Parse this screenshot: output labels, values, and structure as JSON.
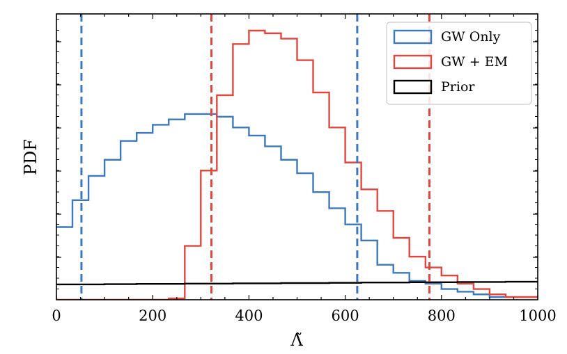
{
  "chart_data": {
    "type": "histogram",
    "xlabel": "Λ̃",
    "ylabel": "PDF",
    "xlim": [
      0,
      1000
    ],
    "ylim": [
      0,
      1.0
    ],
    "xticks": [
      0,
      200,
      400,
      600,
      800,
      1000
    ],
    "xtick_labels": [
      "0",
      "200",
      "400",
      "600",
      "800",
      "1000"
    ],
    "yticks_minor_only": true,
    "bin_edges": [
      0,
      33.3,
      66.7,
      100,
      133.3,
      166.7,
      200,
      233.3,
      266.7,
      300,
      333.3,
      366.7,
      400,
      433.3,
      466.7,
      500,
      533.3,
      566.7,
      600,
      633.3,
      666.7,
      700,
      733.3,
      766.7,
      800,
      833.3,
      866.7,
      900,
      933.3,
      966.7,
      1000
    ],
    "series": [
      {
        "name": "GW Only",
        "color": "#3a78c0",
        "values": [
          0.27,
          0.37,
          0.46,
          0.52,
          0.59,
          0.62,
          0.65,
          0.67,
          0.69,
          0.69,
          0.68,
          0.64,
          0.61,
          0.57,
          0.52,
          0.47,
          0.4,
          0.34,
          0.28,
          0.22,
          0.13,
          0.1,
          0.07,
          0.06,
          0.04,
          0.03,
          0.02,
          0.01,
          0.01,
          0.01
        ]
      },
      {
        "name": "GW + EM",
        "color": "#e2463d",
        "values": [
          0.0,
          0.0,
          0.0,
          0.0,
          0.0,
          0.0,
          0.0,
          0.005,
          0.2,
          0.48,
          0.76,
          0.95,
          1.0,
          0.99,
          0.97,
          0.89,
          0.77,
          0.64,
          0.51,
          0.41,
          0.33,
          0.23,
          0.16,
          0.12,
          0.09,
          0.06,
          0.04,
          0.02,
          0.01,
          0.01
        ]
      },
      {
        "name": "Prior",
        "color": "#000000",
        "values": [
          0.057,
          0.057,
          0.057,
          0.058,
          0.058,
          0.059,
          0.059,
          0.059,
          0.06,
          0.06,
          0.06,
          0.061,
          0.061,
          0.061,
          0.062,
          0.062,
          0.062,
          0.063,
          0.063,
          0.064,
          0.064,
          0.064,
          0.065,
          0.065,
          0.065,
          0.066,
          0.066,
          0.066,
          0.067,
          0.067
        ]
      }
    ],
    "vlines": [
      {
        "x": 52,
        "color": "#3a78c0",
        "series": "GW Only"
      },
      {
        "x": 625,
        "color": "#3a78c0",
        "series": "GW Only"
      },
      {
        "x": 322,
        "color": "#e2463d",
        "series": "GW + EM"
      },
      {
        "x": 775,
        "color": "#e2463d",
        "series": "GW + EM"
      }
    ],
    "legend": {
      "position": "top-right",
      "entries": [
        "GW Only",
        "GW + EM",
        "Prior"
      ]
    }
  }
}
